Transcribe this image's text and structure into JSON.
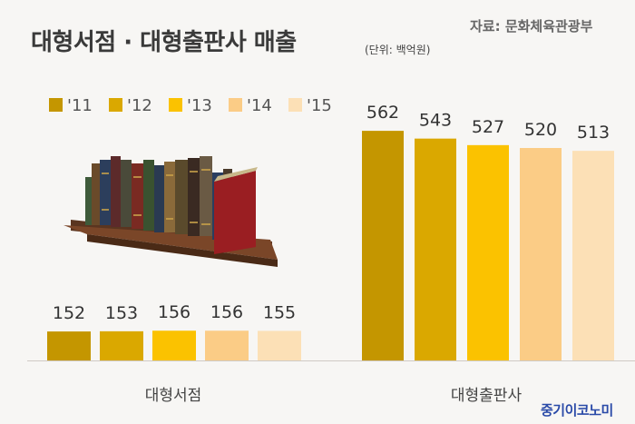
{
  "title": "대형서점 · 대형출판사 매출",
  "unit": "(단위: 백억원)",
  "source": "자료: 문화체육관광부",
  "logo": "중기이코노미",
  "colors": {
    "'11": "#c49600",
    "'12": "#daa800",
    "'13": "#fbc200",
    "'14": "#fbcc86",
    "'15": "#fce0b6"
  },
  "chart_data": {
    "type": "bar",
    "categories": [
      "대형서점",
      "대형출판사"
    ],
    "series": [
      {
        "name": "'11",
        "values": [
          152,
          562
        ]
      },
      {
        "name": "'12",
        "values": [
          153,
          543
        ]
      },
      {
        "name": "'13",
        "values": [
          156,
          527
        ]
      },
      {
        "name": "'14",
        "values": [
          156,
          520
        ]
      },
      {
        "name": "'15",
        "values": [
          155,
          513
        ]
      }
    ],
    "legend": "top-left",
    "grid": false
  }
}
